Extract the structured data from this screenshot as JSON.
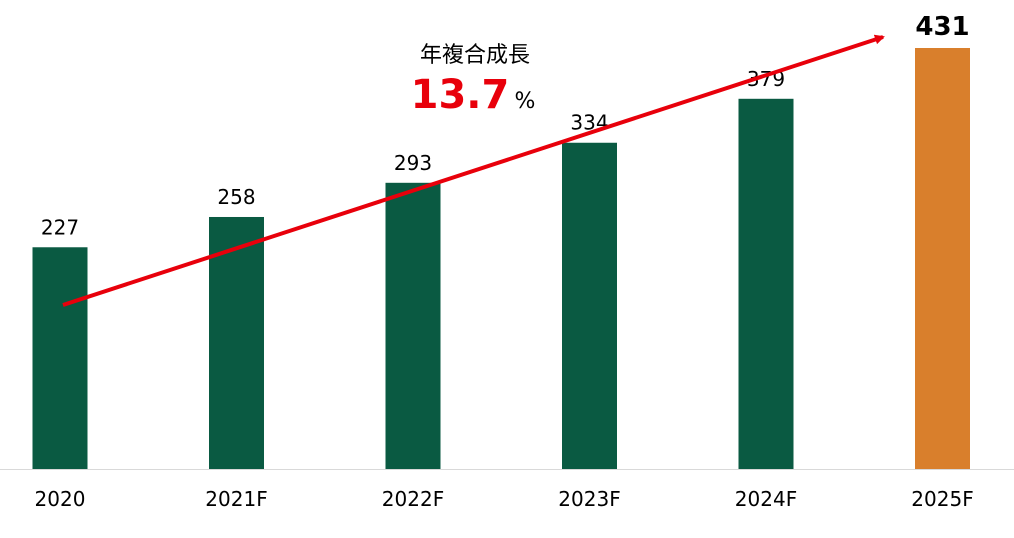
{
  "chart_data": {
    "type": "bar",
    "categories": [
      "2020",
      "2021F",
      "2022F",
      "2023F",
      "2024F",
      "2025F"
    ],
    "values": [
      227,
      258,
      293,
      334,
      379,
      431
    ],
    "ylim": [
      0,
      431
    ],
    "grid": false,
    "legend": "none",
    "colors": {
      "bar": "#0a5a42",
      "highlight_bar": "#d97f2c",
      "highlight_label": "#e8000b",
      "trend_arrow": "#e8000b",
      "baseline": "#d9d9d9"
    },
    "highlight_index": 5,
    "annotation": {
      "title": "年複合成長",
      "value": "13.7",
      "unit": "%"
    }
  }
}
